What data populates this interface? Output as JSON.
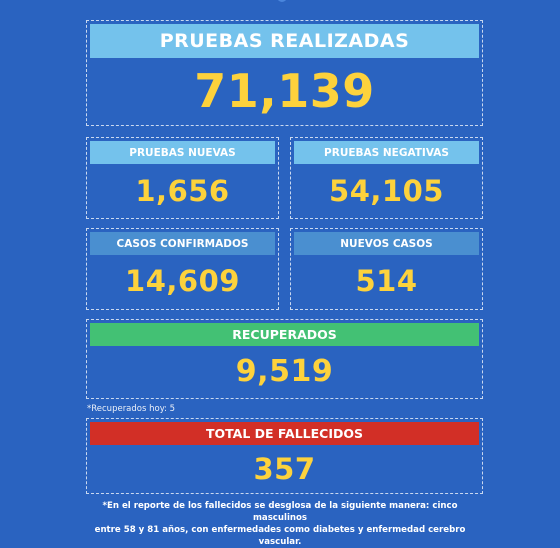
{
  "colors": {
    "background": "#2a63c0",
    "header_blue_light": "#74c2ec",
    "header_blue_dark": "#4a8fd0",
    "header_green": "#43c174",
    "header_red": "#d22f26",
    "value_yellow": "#fdd23c"
  },
  "pruebas_realizadas": {
    "label": "PRUEBAS REALIZADAS",
    "value": "71,139"
  },
  "pruebas_nuevas": {
    "label": "PRUEBAS NUEVAS",
    "value": "1,656"
  },
  "pruebas_negativas": {
    "label": "PRUEBAS NEGATIVAS",
    "value": "54,105"
  },
  "casos_confirmados": {
    "label": "CASOS CONFIRMADOS",
    "value": "14,609"
  },
  "nuevos_casos": {
    "label": "NUEVOS CASOS",
    "value": "514"
  },
  "recuperados": {
    "label": "RECUPERADOS",
    "value": "9,519",
    "note": "*Recuperados hoy: 5"
  },
  "fallecidos": {
    "label": "TOTAL DE FALLECIDOS",
    "value": "357"
  },
  "footnote": {
    "line1": "*En el reporte de los fallecidos se desglosa de la siguiente manera: cinco masculinos",
    "line2": "entre 58 y 81 años, con enfermedades como diabetes y enfermedad cerebro vascular."
  }
}
